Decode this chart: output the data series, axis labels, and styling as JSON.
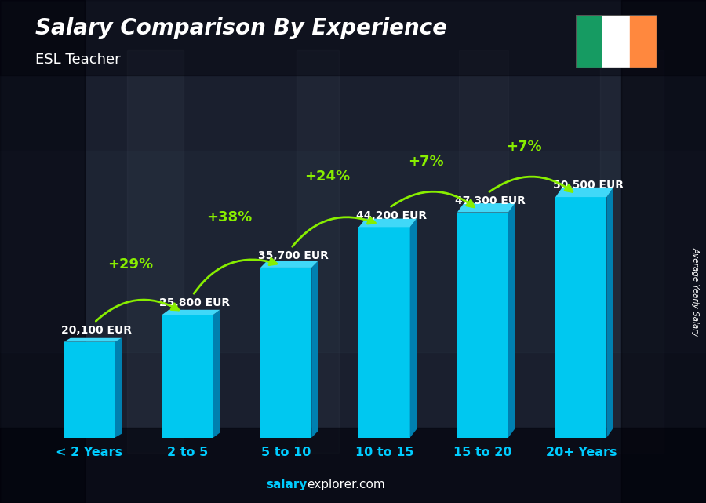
{
  "title": "Salary Comparison By Experience",
  "subtitle": "ESL Teacher",
  "categories": [
    "< 2 Years",
    "2 to 5",
    "5 to 10",
    "10 to 15",
    "15 to 20",
    "20+ Years"
  ],
  "values": [
    20100,
    25800,
    35700,
    44200,
    47300,
    50500
  ],
  "salary_labels": [
    "20,100 EUR",
    "25,800 EUR",
    "35,700 EUR",
    "44,200 EUR",
    "47,300 EUR",
    "50,500 EUR"
  ],
  "pct_labels": [
    "+29%",
    "+38%",
    "+24%",
    "+7%",
    "+7%"
  ],
  "bar_face_color": "#00c8f0",
  "bar_side_color": "#0080b0",
  "bar_top_color": "#40d8f8",
  "bg_overlay_color": "#0a0e1a",
  "title_color": "#ffffff",
  "subtitle_color": "#ffffff",
  "salary_label_color": "#ffffff",
  "pct_color": "#88ee00",
  "xlabel_color": "#00ccff",
  "ylabel_text": "Average Yearly Salary",
  "footer_salary_color": "#00ccff",
  "footer_rest_color": "#ffffff",
  "flag_green": "#169B62",
  "flag_white": "#FFFFFF",
  "flag_orange": "#FF883E"
}
